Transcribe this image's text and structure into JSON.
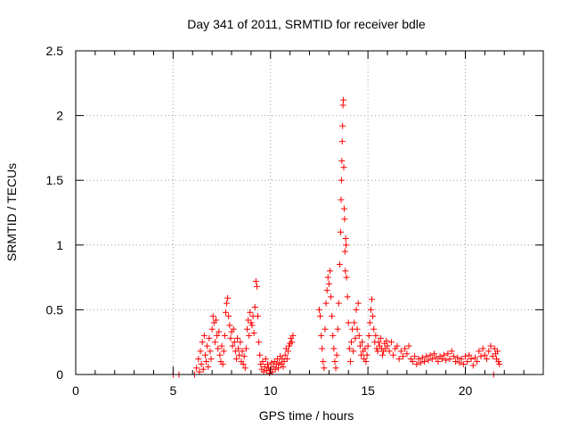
{
  "chart_data": {
    "type": "scatter",
    "title": "Day 341 of 2011, SRMTID for receiver bdle",
    "xlabel": "GPS time / hours",
    "ylabel": "SRMTID / TECUs",
    "xlim": [
      0,
      24
    ],
    "ylim": [
      0,
      2.5
    ],
    "xticks": [
      0,
      5,
      10,
      15,
      20
    ],
    "xtick_labels": [
      "0",
      "5",
      "10",
      "15",
      "20"
    ],
    "yticks": [
      0,
      0.5,
      1,
      1.5,
      2,
      2.5
    ],
    "ytick_labels": [
      "0",
      "0.5",
      "1",
      "1.5",
      "2",
      "2.5"
    ],
    "grid": true,
    "marker": "+",
    "color": "#ff0000",
    "series": [
      {
        "points": [
          [
            5.0,
            0.0
          ],
          [
            5.3,
            0.0
          ],
          [
            6.1,
            0.0
          ],
          [
            6.2,
            0.05
          ],
          [
            6.3,
            0.12
          ],
          [
            6.35,
            0.02
          ],
          [
            6.4,
            0.18
          ],
          [
            6.45,
            0.08
          ],
          [
            6.5,
            0.25
          ],
          [
            6.55,
            0.04
          ],
          [
            6.6,
            0.3
          ],
          [
            6.65,
            0.15
          ],
          [
            6.7,
            0.1
          ],
          [
            6.75,
            0.22
          ],
          [
            6.8,
            0.06
          ],
          [
            6.85,
            0.28
          ],
          [
            6.9,
            0.18
          ],
          [
            6.95,
            0.12
          ],
          [
            7.0,
            0.35
          ],
          [
            7.05,
            0.45
          ],
          [
            7.1,
            0.4
          ],
          [
            7.15,
            0.25
          ],
          [
            7.2,
            0.42
          ],
          [
            7.25,
            0.3
          ],
          [
            7.3,
            0.2
          ],
          [
            7.35,
            0.33
          ],
          [
            7.4,
            0.15
          ],
          [
            7.45,
            0.1
          ],
          [
            7.5,
            0.22
          ],
          [
            7.55,
            0.08
          ],
          [
            7.6,
            0.18
          ],
          [
            7.65,
            0.3
          ],
          [
            7.7,
            0.48
          ],
          [
            7.75,
            0.55
          ],
          [
            7.8,
            0.59
          ],
          [
            7.85,
            0.45
          ],
          [
            7.9,
            0.38
          ],
          [
            7.95,
            0.28
          ],
          [
            8.0,
            0.33
          ],
          [
            8.05,
            0.22
          ],
          [
            8.1,
            0.35
          ],
          [
            8.15,
            0.25
          ],
          [
            8.2,
            0.18
          ],
          [
            8.25,
            0.12
          ],
          [
            8.3,
            0.28
          ],
          [
            8.35,
            0.2
          ],
          [
            8.4,
            0.15
          ],
          [
            8.45,
            0.25
          ],
          [
            8.5,
            0.1
          ],
          [
            8.55,
            0.18
          ],
          [
            8.6,
            0.08
          ],
          [
            8.65,
            0.14
          ],
          [
            8.7,
            0.05
          ],
          [
            8.75,
            0.2
          ],
          [
            8.8,
            0.35
          ],
          [
            8.85,
            0.42
          ],
          [
            8.9,
            0.3
          ],
          [
            8.95,
            0.48
          ],
          [
            9.0,
            0.4
          ],
          [
            9.05,
            0.38
          ],
          [
            9.1,
            0.45
          ],
          [
            9.15,
            0.32
          ],
          [
            9.2,
            0.52
          ],
          [
            9.25,
            0.72
          ],
          [
            9.3,
            0.68
          ],
          [
            9.35,
            0.45
          ],
          [
            9.4,
            0.25
          ],
          [
            9.45,
            0.15
          ],
          [
            9.5,
            0.08
          ],
          [
            9.55,
            0.04
          ],
          [
            9.6,
            0.1
          ],
          [
            9.65,
            0.02
          ],
          [
            9.7,
            0.06
          ],
          [
            9.75,
            0.12
          ],
          [
            9.8,
            0.03
          ],
          [
            9.85,
            0.08
          ],
          [
            9.9,
            0.05
          ],
          [
            9.95,
            0.01
          ],
          [
            10.0,
            0.04
          ],
          [
            10.05,
            0.09
          ],
          [
            10.1,
            0.02
          ],
          [
            10.15,
            0.06
          ],
          [
            10.2,
            0.1
          ],
          [
            10.25,
            0.04
          ],
          [
            10.3,
            0.08
          ],
          [
            10.35,
            0.12
          ],
          [
            10.4,
            0.05
          ],
          [
            10.45,
            0.09
          ],
          [
            10.5,
            0.14
          ],
          [
            10.55,
            0.08
          ],
          [
            10.6,
            0.12
          ],
          [
            10.65,
            0.06
          ],
          [
            10.7,
            0.1
          ],
          [
            10.75,
            0.15
          ],
          [
            10.8,
            0.2
          ],
          [
            10.85,
            0.12
          ],
          [
            10.9,
            0.18
          ],
          [
            10.95,
            0.22
          ],
          [
            11.0,
            0.24
          ],
          [
            11.05,
            0.28
          ],
          [
            11.1,
            0.25
          ],
          [
            11.15,
            0.3
          ],
          [
            12.5,
            0.5
          ],
          [
            12.55,
            0.45
          ],
          [
            12.6,
            0.3
          ],
          [
            12.65,
            0.2
          ],
          [
            12.7,
            0.1
          ],
          [
            12.75,
            0.05
          ],
          [
            12.8,
            0.35
          ],
          [
            12.85,
            0.55
          ],
          [
            12.9,
            0.65
          ],
          [
            12.95,
            0.75
          ],
          [
            13.0,
            0.7
          ],
          [
            13.05,
            0.8
          ],
          [
            13.1,
            0.6
          ],
          [
            13.15,
            0.45
          ],
          [
            13.2,
            0.3
          ],
          [
            13.25,
            0.2
          ],
          [
            13.3,
            0.1
          ],
          [
            13.35,
            0.05
          ],
          [
            13.4,
            0.15
          ],
          [
            13.45,
            0.35
          ],
          [
            13.5,
            0.55
          ],
          [
            13.55,
            0.85
          ],
          [
            13.6,
            1.1
          ],
          [
            13.62,
            1.35
          ],
          [
            13.64,
            1.5
          ],
          [
            13.66,
            1.65
          ],
          [
            13.68,
            1.8
          ],
          [
            13.7,
            1.92
          ],
          [
            13.72,
            2.08
          ],
          [
            13.74,
            2.12
          ],
          [
            13.76,
            1.6
          ],
          [
            13.78,
            1.28
          ],
          [
            13.8,
            1.2
          ],
          [
            13.82,
            0.95
          ],
          [
            13.84,
            0.8
          ],
          [
            13.86,
            1.05
          ],
          [
            13.88,
            1.0
          ],
          [
            13.9,
            0.75
          ],
          [
            13.95,
            0.6
          ],
          [
            14.0,
            0.4
          ],
          [
            14.05,
            0.2
          ],
          [
            14.1,
            0.1
          ],
          [
            14.15,
            0.25
          ],
          [
            14.2,
            0.35
          ],
          [
            14.25,
            0.18
          ],
          [
            14.3,
            0.4
          ],
          [
            14.35,
            0.28
          ],
          [
            14.4,
            0.5
          ],
          [
            14.45,
            0.35
          ],
          [
            14.5,
            0.55
          ],
          [
            14.55,
            0.3
          ],
          [
            14.6,
            0.22
          ],
          [
            14.65,
            0.15
          ],
          [
            14.7,
            0.25
          ],
          [
            14.75,
            0.18
          ],
          [
            14.8,
            0.12
          ],
          [
            14.85,
            0.2
          ],
          [
            14.9,
            0.1
          ],
          [
            14.95,
            0.15
          ],
          [
            15.0,
            0.22
          ],
          [
            15.05,
            0.3
          ],
          [
            15.1,
            0.4
          ],
          [
            15.15,
            0.5
          ],
          [
            15.2,
            0.58
          ],
          [
            15.25,
            0.45
          ],
          [
            15.3,
            0.35
          ],
          [
            15.35,
            0.25
          ],
          [
            15.4,
            0.3
          ],
          [
            15.45,
            0.2
          ],
          [
            15.5,
            0.18
          ],
          [
            15.55,
            0.25
          ],
          [
            15.6,
            0.22
          ],
          [
            15.65,
            0.28
          ],
          [
            15.7,
            0.2
          ],
          [
            15.75,
            0.15
          ],
          [
            15.8,
            0.18
          ],
          [
            15.85,
            0.24
          ],
          [
            15.9,
            0.2
          ],
          [
            15.95,
            0.26
          ],
          [
            16.0,
            0.22
          ],
          [
            16.1,
            0.18
          ],
          [
            16.2,
            0.25
          ],
          [
            16.3,
            0.15
          ],
          [
            16.4,
            0.2
          ],
          [
            16.5,
            0.22
          ],
          [
            16.6,
            0.12
          ],
          [
            16.7,
            0.18
          ],
          [
            16.8,
            0.14
          ],
          [
            16.9,
            0.2
          ],
          [
            17.0,
            0.16
          ],
          [
            17.1,
            0.22
          ],
          [
            17.2,
            0.12
          ],
          [
            17.3,
            0.1
          ],
          [
            17.4,
            0.14
          ],
          [
            17.5,
            0.08
          ],
          [
            17.6,
            0.12
          ],
          [
            17.7,
            0.09
          ],
          [
            17.8,
            0.13
          ],
          [
            17.9,
            0.1
          ],
          [
            18.0,
            0.14
          ],
          [
            18.1,
            0.11
          ],
          [
            18.2,
            0.15
          ],
          [
            18.3,
            0.12
          ],
          [
            18.4,
            0.16
          ],
          [
            18.5,
            0.13
          ],
          [
            18.6,
            0.1
          ],
          [
            18.7,
            0.14
          ],
          [
            18.8,
            0.12
          ],
          [
            18.9,
            0.15
          ],
          [
            19.0,
            0.11
          ],
          [
            19.1,
            0.16
          ],
          [
            19.2,
            0.12
          ],
          [
            19.3,
            0.18
          ],
          [
            19.4,
            0.14
          ],
          [
            19.5,
            0.1
          ],
          [
            19.6,
            0.13
          ],
          [
            19.7,
            0.09
          ],
          [
            19.8,
            0.12
          ],
          [
            19.9,
            0.08
          ],
          [
            20.0,
            0.14
          ],
          [
            20.1,
            0.1
          ],
          [
            20.2,
            0.15
          ],
          [
            20.3,
            0.12
          ],
          [
            20.4,
            0.07
          ],
          [
            20.5,
            0.13
          ],
          [
            20.6,
            0.1
          ],
          [
            20.7,
            0.18
          ],
          [
            20.8,
            0.14
          ],
          [
            20.9,
            0.2
          ],
          [
            21.0,
            0.15
          ],
          [
            21.1,
            0.12
          ],
          [
            21.2,
            0.18
          ],
          [
            21.3,
            0.22
          ],
          [
            21.4,
            0.14
          ],
          [
            21.45,
            0.0
          ],
          [
            21.5,
            0.2
          ],
          [
            21.55,
            0.16
          ],
          [
            21.6,
            0.12
          ],
          [
            21.65,
            0.18
          ],
          [
            21.7,
            0.1
          ],
          [
            21.75,
            0.08
          ]
        ]
      }
    ]
  }
}
